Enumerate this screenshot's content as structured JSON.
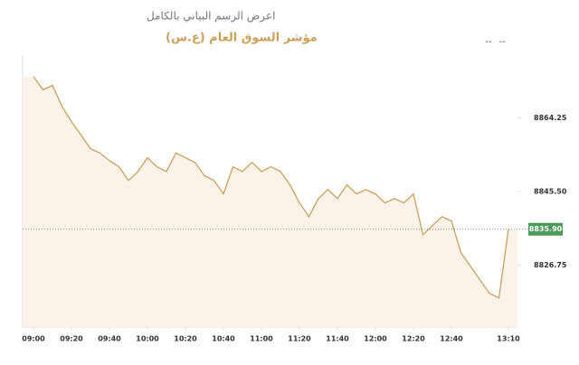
{
  "link": "اعرض الرسم البياني بالكامل",
  "change": "--",
  "percent": "--",
  "chart_data": {
    "type": "area",
    "title": "مؤشر السوق العام (ع.س)",
    "categories": [
      "09:00",
      null,
      null,
      null,
      "09:20",
      null,
      null,
      null,
      "09:40",
      null,
      null,
      null,
      "10:00",
      null,
      null,
      null,
      "10:20",
      null,
      null,
      null,
      "10:40",
      null,
      null,
      null,
      "11:00",
      null,
      null,
      null,
      "11:20",
      null,
      null,
      null,
      "11:40",
      null,
      null,
      null,
      "12:00",
      null,
      null,
      null,
      "12:20",
      null,
      null,
      null,
      "12:40",
      null,
      null,
      null,
      null,
      null,
      "13:10"
    ],
    "values": [
      8874.8,
      8871.4,
      8872.5,
      8867.2,
      8863.3,
      8859.9,
      8856.4,
      8855.3,
      8853.4,
      8851.8,
      8848.3,
      8850.6,
      8854.1,
      8851.8,
      8850.6,
      8855.3,
      8854.1,
      8852.9,
      8849.5,
      8848.3,
      8844.9,
      8851.8,
      8850.6,
      8852.9,
      8850.6,
      8851.8,
      8850.6,
      8847.2,
      8842.6,
      8839.1,
      8843.7,
      8846.0,
      8843.7,
      8847.2,
      8844.9,
      8846.0,
      8844.9,
      8842.6,
      8843.7,
      8842.6,
      8844.9,
      8834.5,
      8836.8,
      8839.1,
      8838.0,
      8829.9,
      8826.5,
      8823.0,
      8819.6,
      8818.4,
      8835.9
    ],
    "value_labels": [
      null,
      null,
      null,
      null,
      null,
      null,
      null,
      null,
      null,
      null,
      null,
      null,
      null,
      null,
      null,
      null,
      null,
      null,
      null,
      null,
      null,
      null,
      null,
      null,
      null,
      null,
      null,
      null,
      null,
      null,
      null,
      null,
      null,
      null,
      null,
      null,
      null,
      null,
      null,
      null,
      null,
      null,
      null,
      null,
      null,
      null,
      null,
      null,
      null,
      null,
      "8835.90"
    ],
    "color": "#c9a15a",
    "fill": "#fbf3ea",
    "label_color": "#4a9a5a",
    "ylim": [
      8811,
      8880
    ],
    "yticks": [
      8864.25,
      {
        "value": 8845.5,
        "label": "8845.50"
      },
      8826.75
    ]
  }
}
